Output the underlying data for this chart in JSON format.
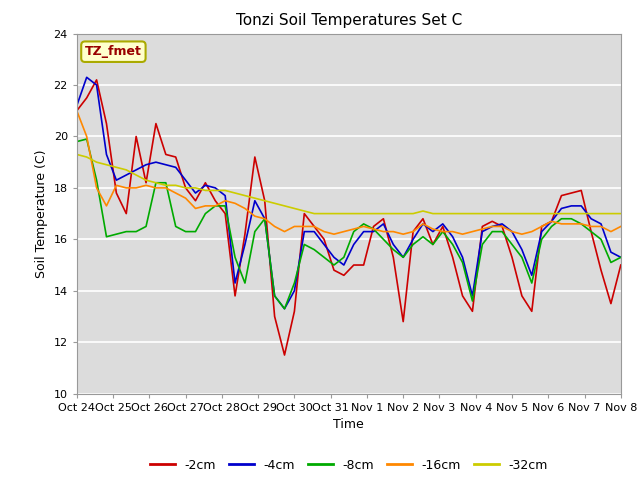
{
  "title": "Tonzi Soil Temperatures Set C",
  "xlabel": "Time",
  "ylabel": "Soil Temperature (C)",
  "ylim": [
    10,
    24
  ],
  "yticks": [
    10,
    12,
    14,
    16,
    18,
    20,
    22,
    24
  ],
  "xtick_labels": [
    "Oct 24",
    "Oct 25",
    "Oct 26",
    "Oct 27",
    "Oct 28",
    "Oct 29",
    "Oct 30",
    "Oct 31",
    "Nov 1",
    "Nov 2",
    "Nov 3",
    "Nov 4",
    "Nov 5",
    "Nov 6",
    "Nov 7",
    "Nov 8"
  ],
  "annotation_text": "TZ_fmet",
  "annotation_bg": "#ffffcc",
  "annotation_fg": "#990000",
  "legend_entries": [
    "-2cm",
    "-4cm",
    "-8cm",
    "-16cm",
    "-32cm"
  ],
  "colors": [
    "#cc0000",
    "#0000cc",
    "#00aa00",
    "#ff8800",
    "#cccc00"
  ],
  "plot_bg": "#dcdcdc",
  "fig_bg": "#ffffff",
  "series_2cm": [
    21.0,
    21.5,
    22.2,
    20.5,
    17.8,
    17.0,
    20.0,
    18.2,
    20.5,
    19.3,
    19.2,
    18.0,
    17.5,
    18.2,
    17.5,
    17.0,
    13.8,
    16.2,
    19.2,
    17.5,
    13.0,
    11.5,
    13.2,
    17.0,
    16.5,
    16.0,
    14.8,
    14.6,
    15.0,
    15.0,
    16.5,
    16.8,
    15.3,
    12.8,
    16.3,
    16.8,
    15.8,
    16.5,
    15.3,
    13.8,
    13.2,
    16.5,
    16.7,
    16.5,
    15.3,
    13.8,
    13.2,
    16.5,
    16.7,
    17.7,
    17.8,
    17.9,
    16.3,
    14.8,
    13.5,
    15.0
  ],
  "series_4cm": [
    21.2,
    22.3,
    22.0,
    19.3,
    18.3,
    18.5,
    18.7,
    18.9,
    19.0,
    18.9,
    18.8,
    18.3,
    17.8,
    18.1,
    18.0,
    17.7,
    14.3,
    15.8,
    17.5,
    16.8,
    13.8,
    13.3,
    14.0,
    16.3,
    16.3,
    15.8,
    15.3,
    15.0,
    15.8,
    16.3,
    16.3,
    16.6,
    15.8,
    15.3,
    16.0,
    16.6,
    16.3,
    16.6,
    16.1,
    15.3,
    13.8,
    16.3,
    16.5,
    16.6,
    16.3,
    15.6,
    14.6,
    16.3,
    16.7,
    17.2,
    17.3,
    17.3,
    16.8,
    16.6,
    15.5,
    15.3
  ],
  "series_8cm": [
    19.8,
    19.9,
    18.3,
    16.1,
    16.2,
    16.3,
    16.3,
    16.5,
    18.2,
    18.2,
    16.5,
    16.3,
    16.3,
    17.0,
    17.3,
    17.3,
    15.3,
    14.3,
    16.3,
    16.8,
    13.8,
    13.3,
    14.3,
    15.8,
    15.6,
    15.3,
    15.0,
    15.3,
    16.3,
    16.6,
    16.4,
    16.0,
    15.6,
    15.3,
    15.8,
    16.1,
    15.8,
    16.3,
    15.8,
    15.1,
    13.6,
    15.8,
    16.3,
    16.3,
    15.8,
    15.3,
    14.3,
    16.0,
    16.5,
    16.8,
    16.8,
    16.6,
    16.3,
    16.0,
    15.1,
    15.3
  ],
  "series_16cm": [
    21.0,
    20.0,
    18.0,
    17.3,
    18.1,
    18.0,
    18.0,
    18.1,
    18.0,
    18.0,
    17.8,
    17.6,
    17.2,
    17.3,
    17.3,
    17.5,
    17.4,
    17.2,
    16.9,
    16.8,
    16.5,
    16.3,
    16.5,
    16.5,
    16.5,
    16.3,
    16.2,
    16.3,
    16.4,
    16.5,
    16.4,
    16.3,
    16.3,
    16.2,
    16.3,
    16.6,
    16.4,
    16.3,
    16.3,
    16.2,
    16.3,
    16.4,
    16.5,
    16.5,
    16.3,
    16.2,
    16.3,
    16.5,
    16.7,
    16.6,
    16.6,
    16.6,
    16.5,
    16.5,
    16.3,
    16.5
  ],
  "series_32cm": [
    19.3,
    19.2,
    19.0,
    18.9,
    18.8,
    18.7,
    18.5,
    18.3,
    18.2,
    18.1,
    18.1,
    18.0,
    18.0,
    17.9,
    17.9,
    17.9,
    17.8,
    17.7,
    17.6,
    17.5,
    17.4,
    17.3,
    17.2,
    17.1,
    17.0,
    17.0,
    17.0,
    17.0,
    17.0,
    17.0,
    17.0,
    17.0,
    17.0,
    17.0,
    17.0,
    17.1,
    17.0,
    17.0,
    17.0,
    17.0,
    17.0,
    17.0,
    17.0,
    17.0,
    17.0,
    17.0,
    17.0,
    17.0,
    17.0,
    17.0,
    17.0,
    17.0,
    17.0,
    17.0,
    17.0,
    17.0
  ]
}
